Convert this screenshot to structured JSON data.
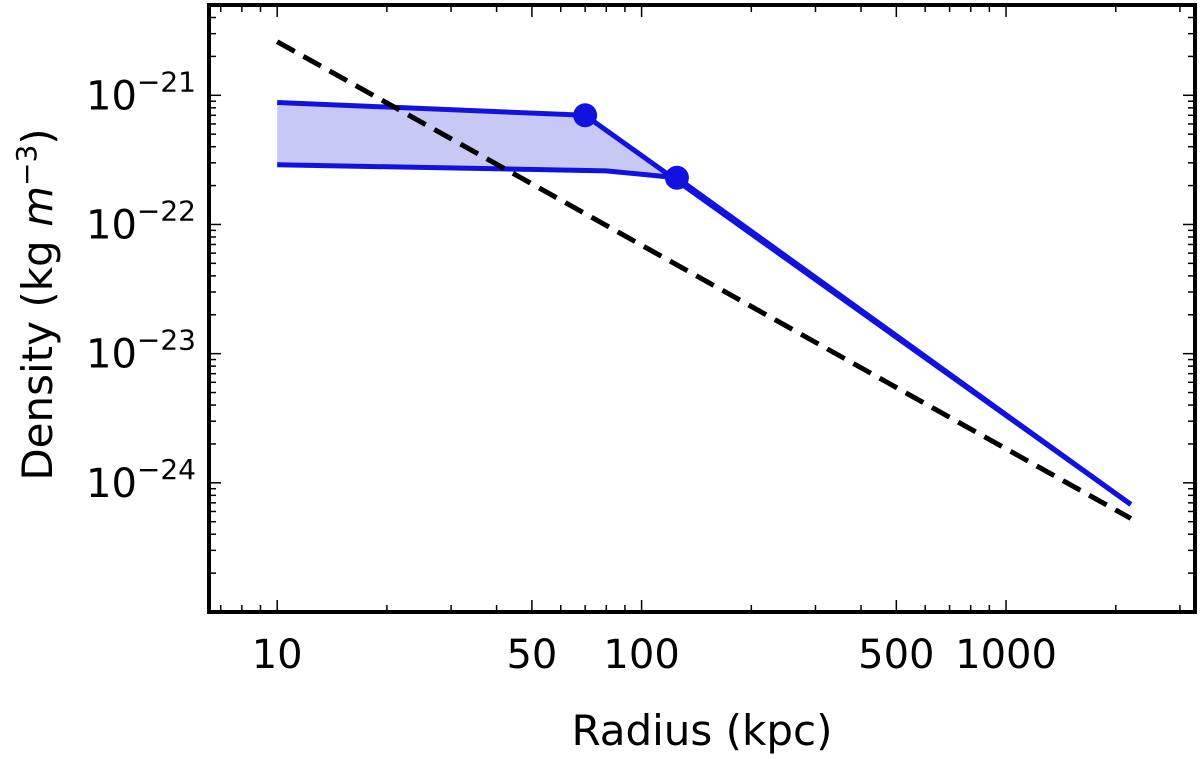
{
  "chart_data": {
    "type": "line",
    "xlabel": "Radius (kpc)",
    "ylabel_prefix": "Density (kg ",
    "ylabel_unit_base": "m",
    "ylabel_unit_exp": "−3",
    "ylabel_suffix": ")",
    "x_scale": "log",
    "y_scale": "log",
    "xlim": [
      6.5,
      3300
    ],
    "ylim": [
      1e-25,
      5e-21
    ],
    "x_ticks": [
      {
        "value": 10,
        "label": "10"
      },
      {
        "value": 50,
        "label": "50"
      },
      {
        "value": 100,
        "label": "100"
      },
      {
        "value": 500,
        "label": "500"
      },
      {
        "value": 1000,
        "label": "1000"
      }
    ],
    "y_ticks": [
      {
        "value": 1e-21,
        "base": "10",
        "exp": "−21"
      },
      {
        "value": 1e-22,
        "base": "10",
        "exp": "−22"
      },
      {
        "value": 1e-23,
        "base": "10",
        "exp": "−23"
      },
      {
        "value": 1e-24,
        "base": "10",
        "exp": "−24"
      }
    ],
    "grid": false,
    "series": [
      {
        "style": "solid",
        "color": "#1212e0",
        "x": [
          10,
          70,
          2200
        ],
        "y": [
          8.8e-22,
          7e-22,
          6.8e-25
        ]
      },
      {
        "style": "solid",
        "color": "#1212e0",
        "x": [
          10,
          80,
          125,
          2200
        ],
        "y": [
          2.9e-22,
          2.6e-22,
          2.3e-22,
          6.8e-25
        ]
      },
      {
        "style": "dashed",
        "color": "#000000",
        "x": [
          10,
          2200
        ],
        "y": [
          2.6e-21,
          5.3e-25
        ]
      }
    ],
    "band": {
      "color": "#c8c8f4",
      "upper_x": [
        10,
        70,
        125
      ],
      "upper_y": [
        8.8e-22,
        7e-22,
        2.3e-22
      ],
      "lower_x": [
        10,
        80,
        125
      ],
      "lower_y": [
        2.9e-22,
        2.6e-22,
        2.3e-22
      ]
    },
    "markers": [
      {
        "x": 70,
        "y": 7e-22,
        "color": "#1212e0"
      },
      {
        "x": 125,
        "y": 2.3e-22,
        "color": "#1212e0"
      }
    ]
  }
}
